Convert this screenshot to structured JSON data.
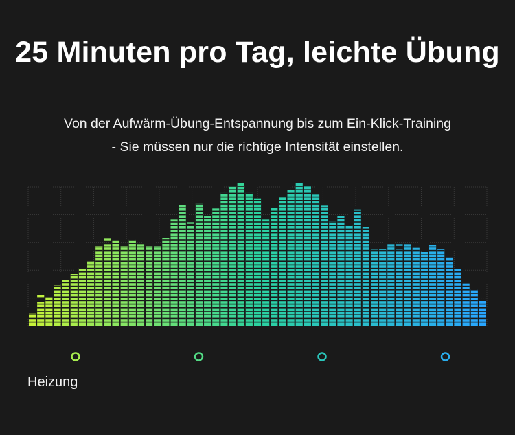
{
  "header": {
    "title": "25 Minuten pro Tag, leichte Übung",
    "subtitle_line1": "Von der Aufwärm-Übung-Entspannung bis zum Ein-Klick-Training",
    "subtitle_line2": "- Sie müssen nur die richtige Intensität einstellen."
  },
  "timeline": {
    "phase_label": "Heizung",
    "markers": 4,
    "gradient_colors": [
      "#c6f23a",
      "#2bd3a0",
      "#29a6ff"
    ]
  },
  "chart_data": {
    "type": "bar",
    "style": "equalizer",
    "grid": true,
    "ylim": [
      0,
      15
    ],
    "values": [
      1.3,
      2.6,
      3.1,
      4.4,
      5.0,
      5.7,
      6.3,
      7.0,
      8.7,
      8.9,
      9.4,
      8.7,
      9.4,
      8.9,
      8.7,
      8.7,
      9.6,
      11.6,
      13.2,
      11.0,
      13.4,
      12.0,
      12.8,
      14.5,
      15.3,
      15.6,
      14.5,
      13.9,
      11.6,
      12.9,
      14.0,
      14.8,
      15.6,
      15.2,
      14.3,
      13.1,
      11.4,
      12.0,
      11.0,
      12.7,
      10.8,
      8.3,
      8.4,
      8.9,
      8.3,
      8.9,
      8.5,
      8.1,
      8.8,
      8.4,
      7.5,
      6.2,
      4.6,
      4.0,
      2.7
    ],
    "peaks": [
      1.3,
      3.3,
      3.1,
      4.4,
      5.0,
      5.7,
      6.3,
      7.0,
      8.7,
      9.5,
      9.4,
      8.7,
      9.4,
      8.9,
      8.7,
      8.7,
      9.6,
      11.6,
      13.2,
      11.3,
      13.4,
      12.0,
      12.8,
      14.5,
      15.3,
      15.6,
      14.5,
      13.9,
      8.5,
      12.9,
      14.0,
      14.8,
      15.6,
      15.2,
      14.3,
      11.4,
      11.4,
      12.0,
      11.0,
      12.7,
      10.8,
      8.3,
      8.4,
      8.9,
      8.9,
      8.9,
      8.5,
      8.1,
      8.8,
      7.4,
      7.5,
      6.2,
      4.6,
      4.0,
      2.7
    ]
  }
}
